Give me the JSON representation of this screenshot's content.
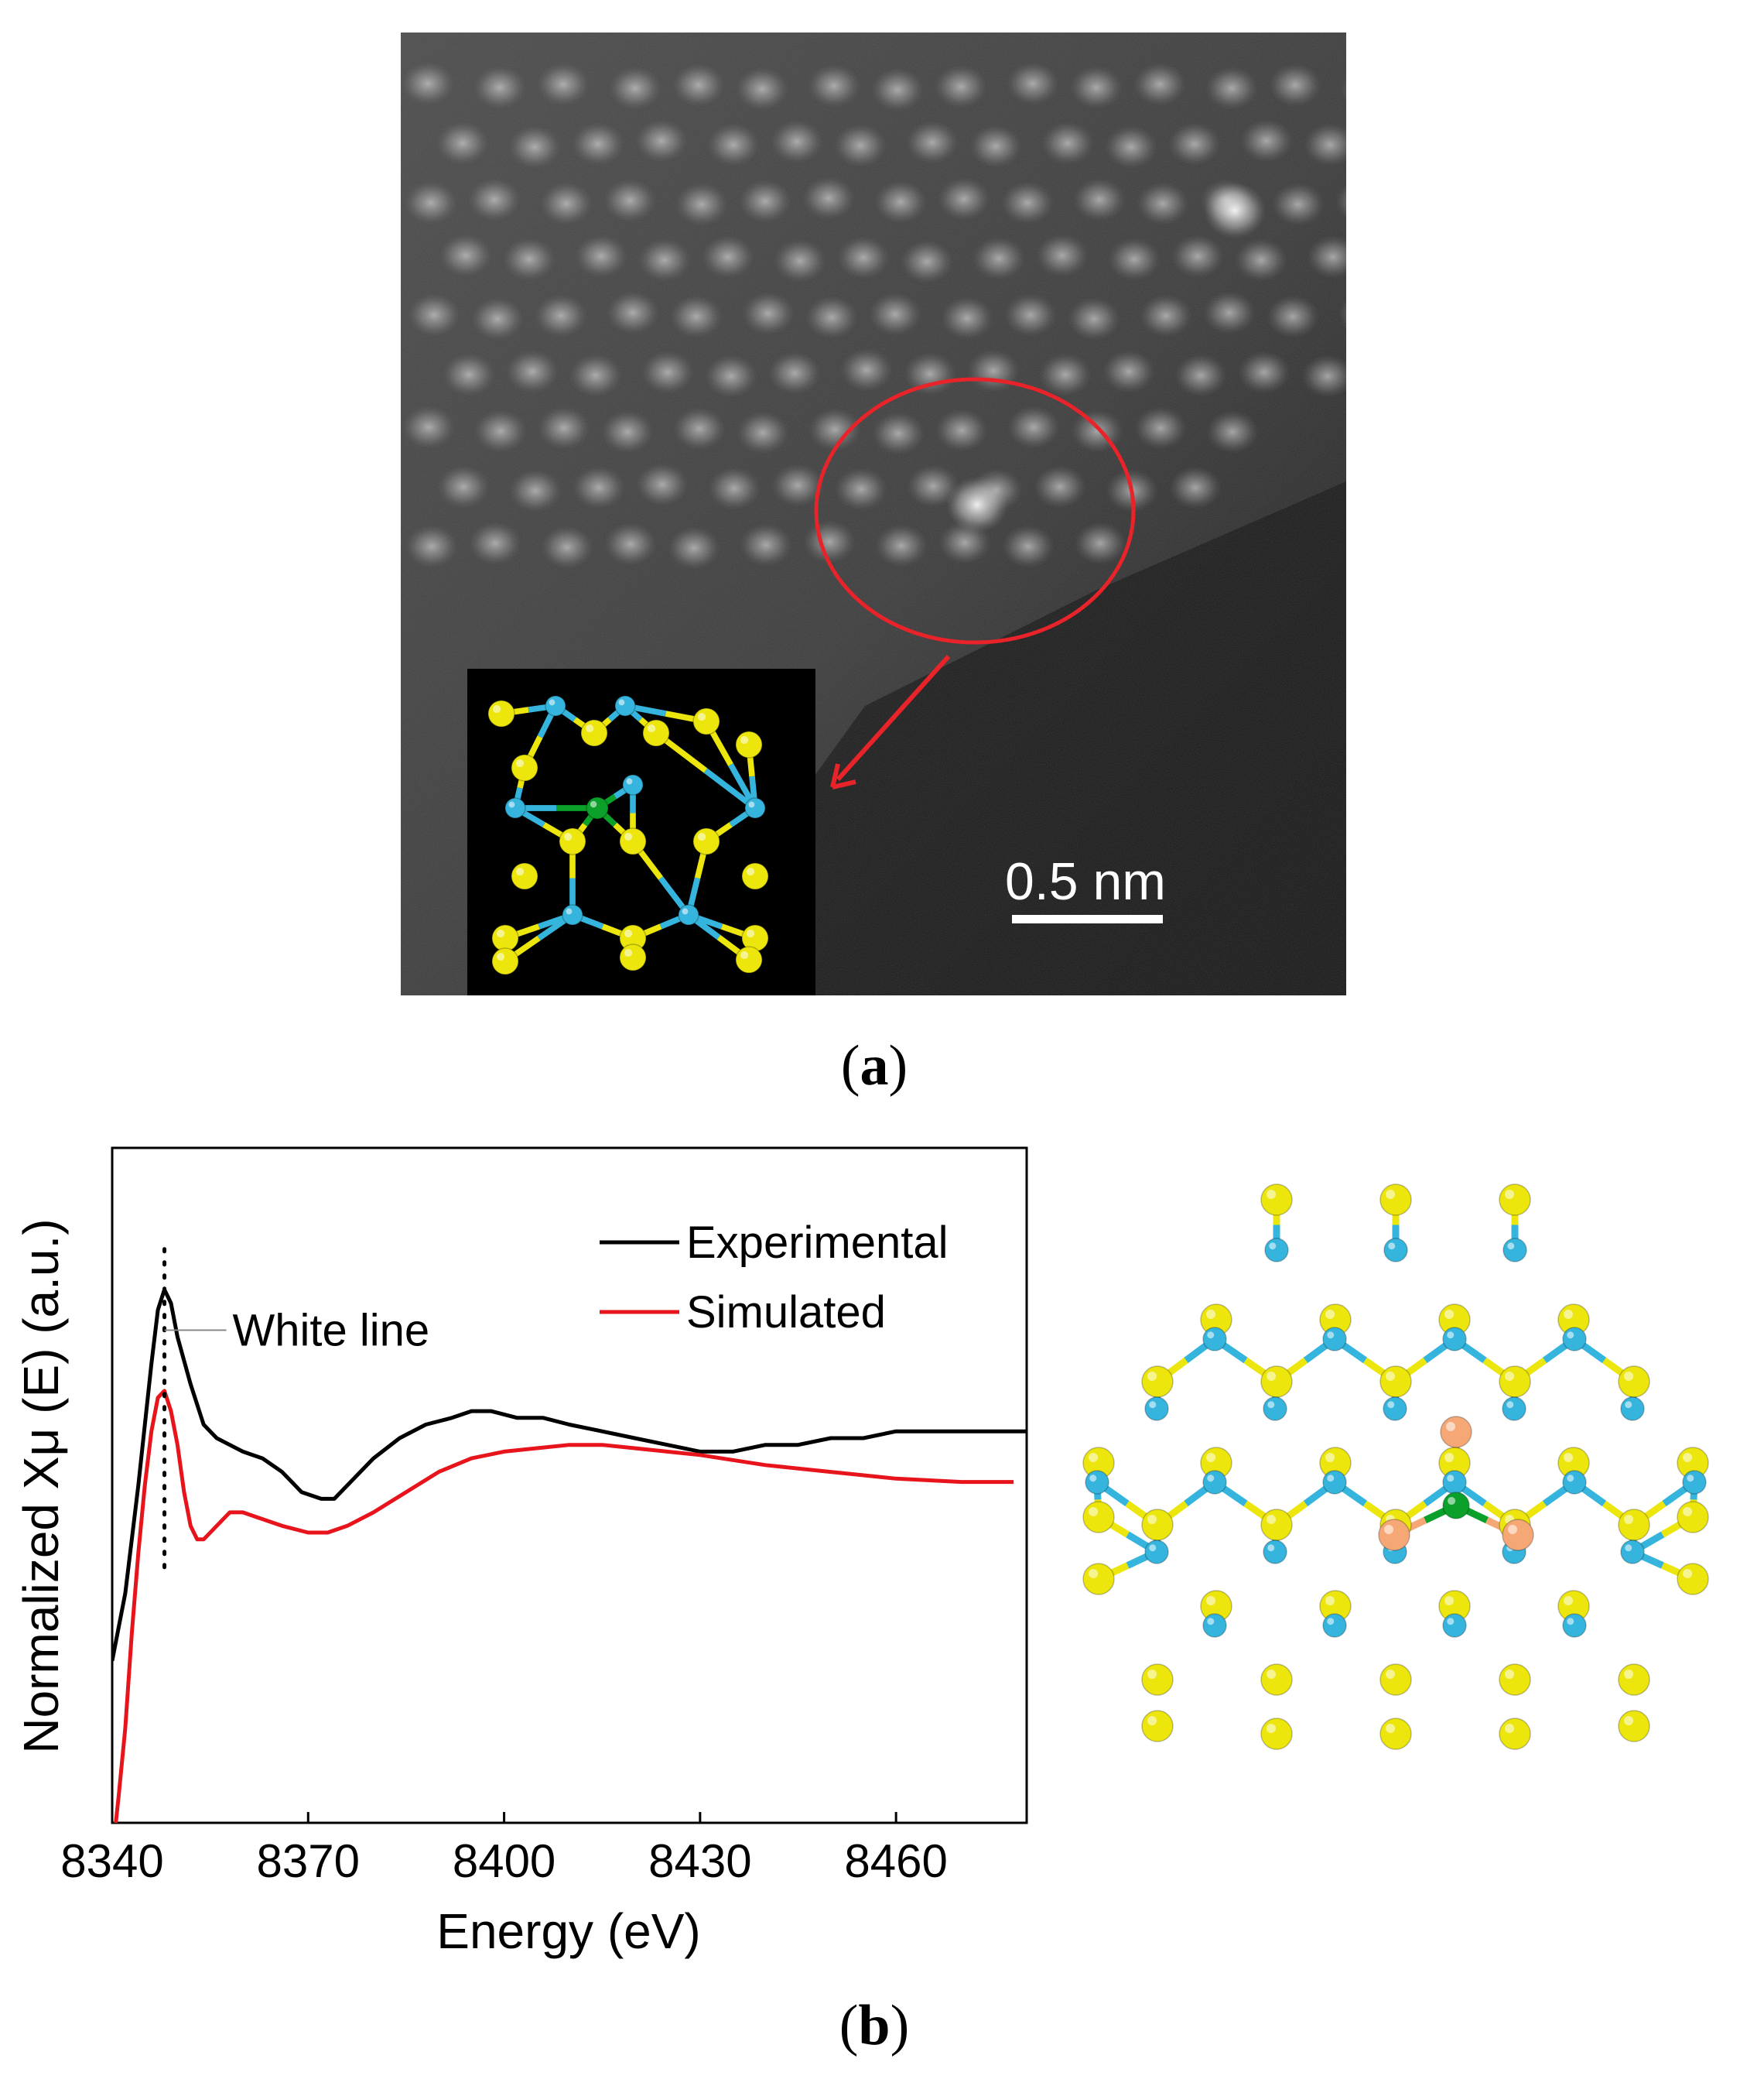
{
  "figure": {
    "panel_a": {
      "label_open": "(",
      "label_letter": "a",
      "label_close": ")",
      "scale_bar_text": "0.5 nm",
      "highlight_color": "#e8232a"
    },
    "panel_b": {
      "label_open": "(",
      "label_letter": "b",
      "label_close": ")"
    }
  },
  "colors": {
    "sulfur": "#ece60c",
    "molybdenum": "#35b5dd",
    "dopant": "#0aa02a",
    "neighbor": "#f5a876",
    "experimental": "#000000",
    "simulated": "#e8141c"
  },
  "chart_data": {
    "type": "line",
    "title": "",
    "xlabel": "Energy (eV)",
    "ylabel": "Normalized Xμ (E) (a.u.)",
    "xlim": [
      8340,
      8480
    ],
    "ylim": [
      0,
      1
    ],
    "x_ticks": [
      8340,
      8370,
      8400,
      8430,
      8460
    ],
    "show_y_ticks": false,
    "grid": false,
    "legend_position": "top-right",
    "annotation": {
      "text": "White line",
      "x": 8348,
      "style": "dotted vertical line"
    },
    "series": [
      {
        "name": "Experimental",
        "color": "#000000",
        "x": [
          8340,
          8342,
          8344,
          8346,
          8347,
          8348,
          8349,
          8350,
          8352,
          8354,
          8356,
          8358,
          8360,
          8363,
          8366,
          8369,
          8372,
          8374,
          8376,
          8380,
          8384,
          8388,
          8392,
          8395,
          8398,
          8402,
          8406,
          8410,
          8415,
          8420,
          8425,
          8430,
          8435,
          8440,
          8445,
          8450,
          8455,
          8460,
          8465,
          8470,
          8475,
          8480
        ],
        "y": [
          0.24,
          0.34,
          0.5,
          0.68,
          0.76,
          0.79,
          0.77,
          0.72,
          0.65,
          0.59,
          0.57,
          0.56,
          0.55,
          0.54,
          0.52,
          0.49,
          0.48,
          0.48,
          0.5,
          0.54,
          0.57,
          0.59,
          0.6,
          0.61,
          0.61,
          0.6,
          0.6,
          0.59,
          0.58,
          0.57,
          0.56,
          0.55,
          0.55,
          0.56,
          0.56,
          0.57,
          0.57,
          0.58,
          0.58,
          0.58,
          0.58,
          0.58
        ]
      },
      {
        "name": "Simulated",
        "color": "#e8141c",
        "x": [
          8340,
          8341,
          8342,
          8343,
          8344,
          8345,
          8346,
          8347,
          8348,
          8349,
          8350,
          8351,
          8352,
          8353,
          8354,
          8356,
          8358,
          8360,
          8363,
          8366,
          8370,
          8373,
          8376,
          8380,
          8385,
          8390,
          8395,
          8400,
          8405,
          8410,
          8415,
          8420,
          8430,
          8440,
          8450,
          8460,
          8470,
          8478
        ],
        "y": [
          -0.05,
          0.04,
          0.14,
          0.28,
          0.4,
          0.5,
          0.58,
          0.63,
          0.64,
          0.61,
          0.56,
          0.49,
          0.44,
          0.42,
          0.42,
          0.44,
          0.46,
          0.46,
          0.45,
          0.44,
          0.43,
          0.43,
          0.44,
          0.46,
          0.49,
          0.52,
          0.54,
          0.55,
          0.555,
          0.56,
          0.56,
          0.555,
          0.545,
          0.53,
          0.52,
          0.51,
          0.505,
          0.505
        ]
      }
    ]
  }
}
